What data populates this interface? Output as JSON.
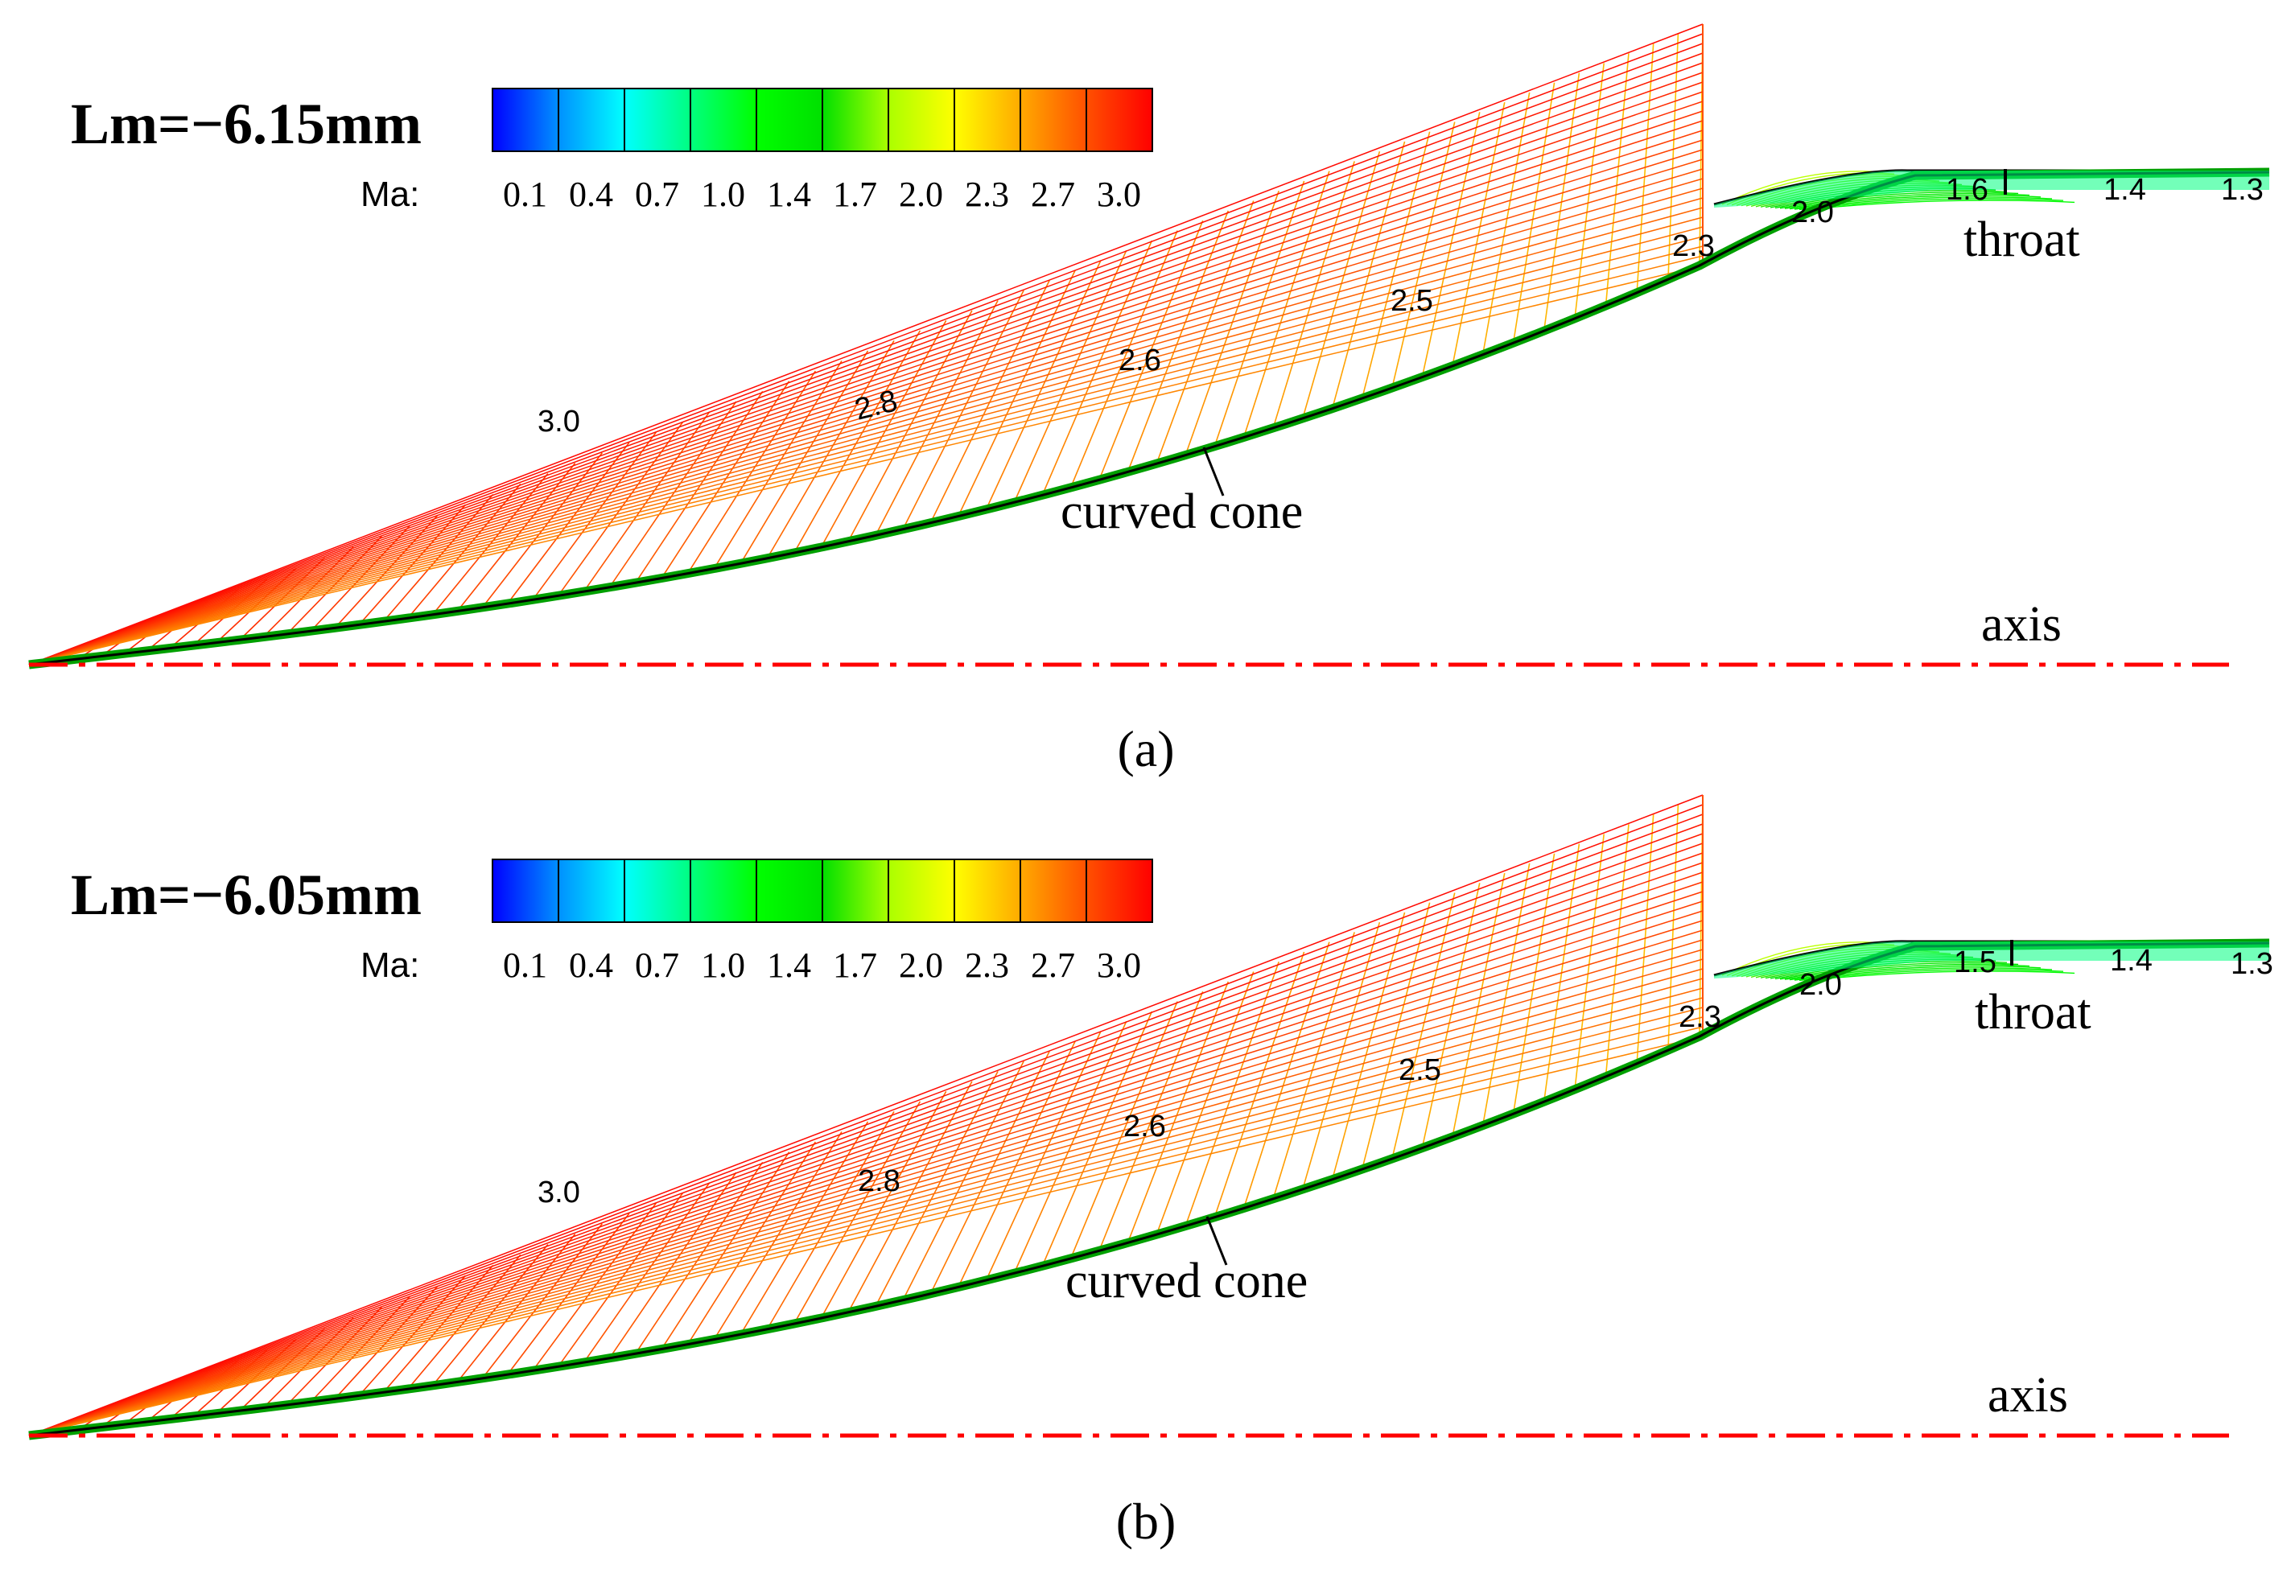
{
  "figure": {
    "variable_label": "Ma:",
    "colorbar_levels": [
      "0.1",
      "0.4",
      "0.7",
      "1.0",
      "1.4",
      "1.7",
      "2.0",
      "2.3",
      "2.7",
      "3.0"
    ],
    "colormap": [
      "#0000ff",
      "#0090ff",
      "#00ffff",
      "#00ff80",
      "#00ff00",
      "#00e000",
      "#aaff00",
      "#ffff00",
      "#ffaa00",
      "#ff5000",
      "#ff0000"
    ],
    "annotation_curved_cone": "curved cone",
    "annotation_throat": "throat",
    "annotation_axis": "axis",
    "axis_color": "#ff0000"
  },
  "panels": [
    {
      "id": "a",
      "lm_label": "Lm=−6.15mm",
      "caption": "(a)",
      "contour_labels": [
        "3.0",
        "2.8",
        "2.6",
        "2.5",
        "2.3",
        "2.0",
        "1.6",
        "1.4",
        "1.3"
      ]
    },
    {
      "id": "b",
      "lm_label": "Lm=−6.05mm",
      "caption": "(b)",
      "contour_labels": [
        "3.0",
        "2.8",
        "2.6",
        "2.5",
        "2.3",
        "2.0",
        "1.5",
        "1.4",
        "1.3"
      ]
    }
  ]
}
